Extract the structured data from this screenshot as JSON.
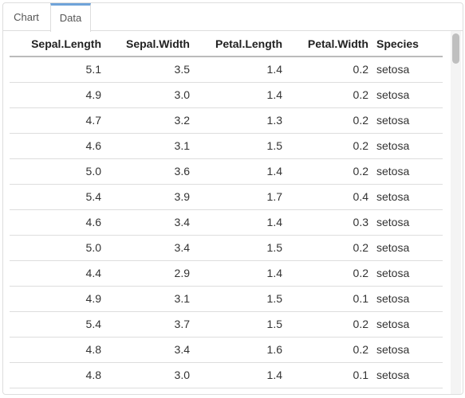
{
  "tabs": {
    "chart_label": "Chart",
    "data_label": "Data",
    "active": "Data",
    "active_color": "#6fa3d9"
  },
  "table": {
    "columns": [
      "Sepal.Length",
      "Sepal.Width",
      "Petal.Length",
      "Petal.Width",
      "Species"
    ],
    "rows": [
      [
        "5.1",
        "3.5",
        "1.4",
        "0.2",
        "setosa"
      ],
      [
        "4.9",
        "3.0",
        "1.4",
        "0.2",
        "setosa"
      ],
      [
        "4.7",
        "3.2",
        "1.3",
        "0.2",
        "setosa"
      ],
      [
        "4.6",
        "3.1",
        "1.5",
        "0.2",
        "setosa"
      ],
      [
        "5.0",
        "3.6",
        "1.4",
        "0.2",
        "setosa"
      ],
      [
        "5.4",
        "3.9",
        "1.7",
        "0.4",
        "setosa"
      ],
      [
        "4.6",
        "3.4",
        "1.4",
        "0.3",
        "setosa"
      ],
      [
        "5.0",
        "3.4",
        "1.5",
        "0.2",
        "setosa"
      ],
      [
        "4.4",
        "2.9",
        "1.4",
        "0.2",
        "setosa"
      ],
      [
        "4.9",
        "3.1",
        "1.5",
        "0.1",
        "setosa"
      ],
      [
        "5.4",
        "3.7",
        "1.5",
        "0.2",
        "setosa"
      ],
      [
        "4.8",
        "3.4",
        "1.6",
        "0.2",
        "setosa"
      ],
      [
        "4.8",
        "3.0",
        "1.4",
        "0.1",
        "setosa"
      ]
    ]
  }
}
